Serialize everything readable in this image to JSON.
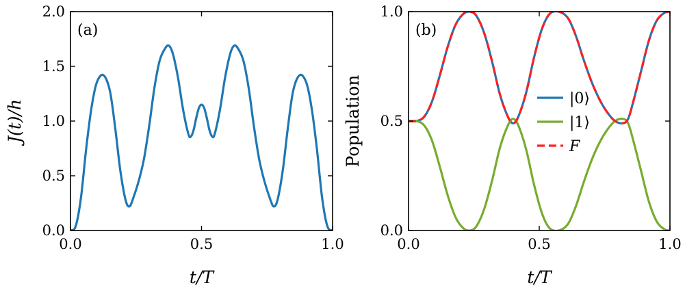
{
  "chart_data": [
    {
      "type": "line",
      "panel": "(a)",
      "xlabel": "t/T",
      "ylabel": "J(t)/h",
      "xlim": [
        0,
        1
      ],
      "ylim": [
        0,
        2
      ],
      "xticks": [
        "0.0",
        "0.5",
        "1.0"
      ],
      "yticks": [
        "0.0",
        "0.5",
        "1.0",
        "1.5",
        "2.0"
      ],
      "grid": false,
      "series": [
        {
          "color": "#1f77b4",
          "x": [
            0,
            0.02,
            0.04,
            0.06,
            0.08,
            0.1,
            0.125,
            0.15,
            0.17,
            0.19,
            0.21,
            0.225,
            0.24,
            0.26,
            0.28,
            0.3,
            0.32,
            0.34,
            0.36,
            0.375,
            0.39,
            0.41,
            0.43,
            0.45,
            0.46,
            0.47,
            0.48,
            0.49,
            0.5,
            0.51,
            0.52,
            0.53,
            0.54,
            0.55,
            0.57,
            0.59,
            0.61,
            0.625,
            0.64,
            0.66,
            0.68,
            0.7,
            0.72,
            0.74,
            0.76,
            0.775,
            0.79,
            0.81,
            0.83,
            0.85,
            0.875,
            0.9,
            0.92,
            0.94,
            0.96,
            0.98,
            1.0
          ],
          "y": [
            0,
            0.04,
            0.3,
            0.75,
            1.12,
            1.35,
            1.42,
            1.28,
            0.95,
            0.55,
            0.28,
            0.22,
            0.3,
            0.45,
            0.65,
            0.95,
            1.3,
            1.55,
            1.66,
            1.69,
            1.62,
            1.4,
            1.1,
            0.88,
            0.86,
            0.92,
            1.03,
            1.12,
            1.15,
            1.12,
            1.03,
            0.92,
            0.86,
            0.88,
            1.1,
            1.4,
            1.62,
            1.69,
            1.66,
            1.55,
            1.3,
            0.95,
            0.65,
            0.45,
            0.3,
            0.22,
            0.28,
            0.55,
            0.95,
            1.28,
            1.42,
            1.35,
            1.12,
            0.75,
            0.3,
            0.04,
            0
          ]
        }
      ]
    },
    {
      "type": "line",
      "panel": "(b)",
      "xlabel": "t/T",
      "ylabel": "Population",
      "xlim": [
        0,
        1
      ],
      "ylim": [
        0,
        1
      ],
      "xticks": [
        "0.0",
        "0.5",
        "1.0"
      ],
      "yticks": [
        "0.0",
        "0.5",
        "1.0"
      ],
      "grid": false,
      "legend_position": "center",
      "series": [
        {
          "name": "|0⟩",
          "color": "#1f77b4",
          "dash": false,
          "x": [
            0,
            0.03,
            0.06,
            0.09,
            0.12,
            0.15,
            0.18,
            0.21,
            0.235,
            0.26,
            0.29,
            0.32,
            0.35,
            0.38,
            0.4,
            0.42,
            0.45,
            0.48,
            0.51,
            0.54,
            0.575,
            0.61,
            0.64,
            0.67,
            0.7,
            0.73,
            0.76,
            0.79,
            0.82,
            0.84,
            0.86,
            0.89,
            0.92,
            0.95,
            0.98,
            1.0
          ],
          "y": [
            0.5,
            0.5,
            0.52,
            0.59,
            0.71,
            0.84,
            0.94,
            0.99,
            1.0,
            0.98,
            0.9,
            0.77,
            0.62,
            0.52,
            0.49,
            0.52,
            0.63,
            0.79,
            0.92,
            0.99,
            1.0,
            0.97,
            0.89,
            0.78,
            0.68,
            0.6,
            0.54,
            0.5,
            0.49,
            0.51,
            0.59,
            0.73,
            0.87,
            0.96,
            0.995,
            1.0
          ]
        },
        {
          "name": "|1⟩",
          "color": "#77ac30",
          "dash": false,
          "x": [
            0,
            0.03,
            0.06,
            0.09,
            0.12,
            0.15,
            0.18,
            0.21,
            0.235,
            0.26,
            0.29,
            0.32,
            0.35,
            0.38,
            0.4,
            0.42,
            0.45,
            0.48,
            0.51,
            0.54,
            0.575,
            0.61,
            0.64,
            0.67,
            0.7,
            0.73,
            0.76,
            0.79,
            0.82,
            0.84,
            0.86,
            0.89,
            0.92,
            0.95,
            0.98,
            1.0
          ],
          "y": [
            0.5,
            0.5,
            0.48,
            0.41,
            0.29,
            0.16,
            0.06,
            0.01,
            0.0,
            0.02,
            0.1,
            0.23,
            0.38,
            0.48,
            0.51,
            0.48,
            0.37,
            0.21,
            0.08,
            0.01,
            0.0,
            0.03,
            0.11,
            0.22,
            0.32,
            0.4,
            0.46,
            0.5,
            0.51,
            0.49,
            0.41,
            0.27,
            0.13,
            0.04,
            0.005,
            0.0
          ]
        },
        {
          "name": "F",
          "color": "#ff2020",
          "dash": true,
          "x": [
            0,
            0.03,
            0.06,
            0.09,
            0.12,
            0.15,
            0.18,
            0.21,
            0.235,
            0.26,
            0.29,
            0.32,
            0.35,
            0.38,
            0.4,
            0.42,
            0.45,
            0.48,
            0.51,
            0.54,
            0.575,
            0.61,
            0.64,
            0.67,
            0.7,
            0.73,
            0.76,
            0.79,
            0.82,
            0.84,
            0.86,
            0.89,
            0.92,
            0.95,
            0.98,
            1.0
          ],
          "y": [
            0.5,
            0.5,
            0.52,
            0.59,
            0.71,
            0.84,
            0.94,
            0.99,
            1.0,
            0.98,
            0.9,
            0.77,
            0.62,
            0.52,
            0.49,
            0.52,
            0.63,
            0.79,
            0.92,
            0.99,
            1.0,
            0.97,
            0.89,
            0.78,
            0.68,
            0.6,
            0.54,
            0.5,
            0.49,
            0.51,
            0.59,
            0.73,
            0.87,
            0.96,
            0.995,
            1.0
          ]
        }
      ]
    }
  ]
}
